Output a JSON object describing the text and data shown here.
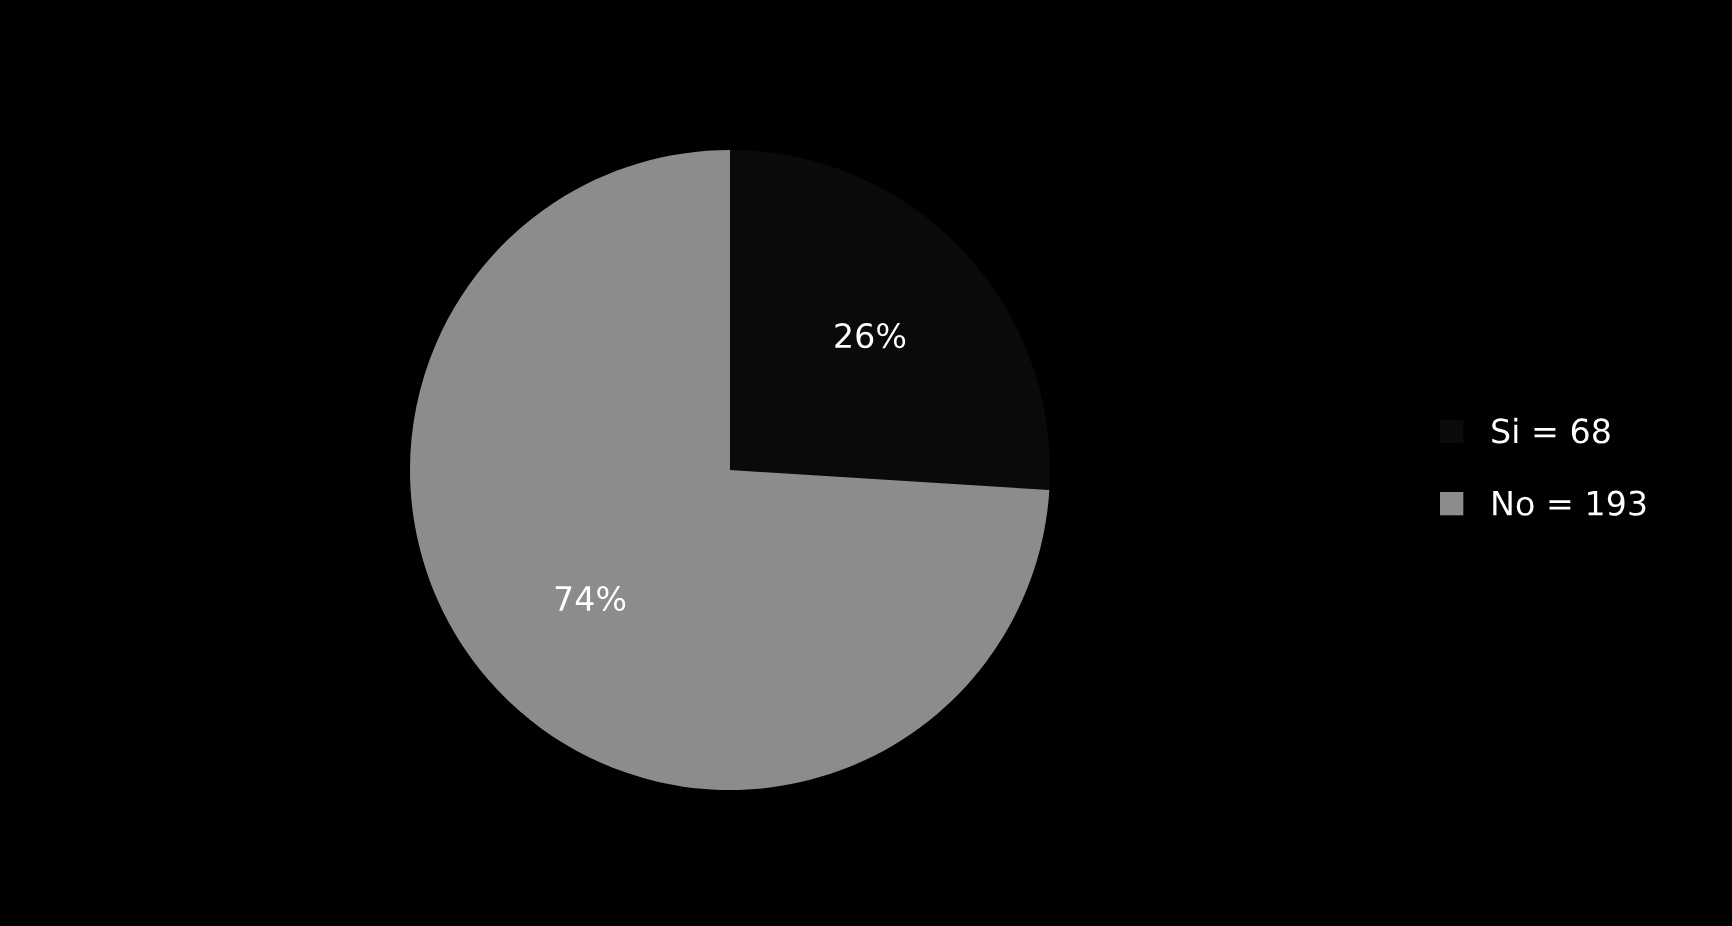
{
  "chart_data": {
    "type": "pie",
    "categories": [
      "Si = 68",
      "No = 193"
    ],
    "values": [
      26,
      74
    ],
    "colors": [
      "#0a0a0a",
      "#8c8c8c"
    ],
    "value_labels": [
      "26%",
      "74%"
    ],
    "legend": "right"
  }
}
